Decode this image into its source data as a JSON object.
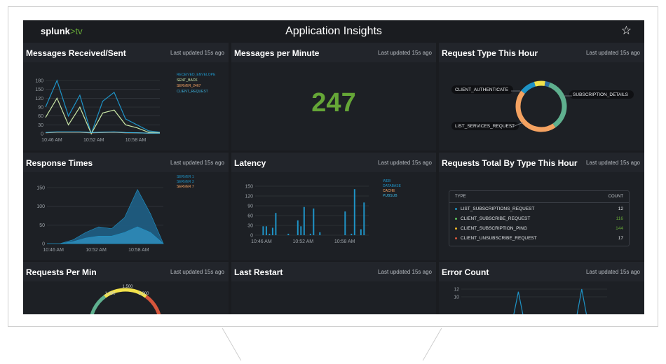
{
  "app": {
    "logo_main": "splunk",
    "logo_tv": ">tv",
    "title": "Application Insights",
    "star_icon": "☆"
  },
  "panels": {
    "messages_received_sent": {
      "title": "Messages Received/Sent",
      "updated": "Last updated 15s ago"
    },
    "messages_per_minute": {
      "title": "Messages per Minute",
      "updated": "Last updated 15s ago",
      "value": "247"
    },
    "request_type_hour": {
      "title": "Request Type This Hour",
      "updated": "Last updated 15s ago"
    },
    "response_times": {
      "title": "Response Times",
      "updated": "Last updated 15s ago"
    },
    "latency": {
      "title": "Latency",
      "updated": "Last updated 15s ago"
    },
    "requests_total": {
      "title": "Requests Total By Type This Hour",
      "updated": "Last updated 15s ago"
    },
    "requests_per_min": {
      "title": "Requests Per Min",
      "updated": "Last updated 15s ago"
    },
    "last_restart": {
      "title": "Last Restart",
      "updated": "Last updated 15s ago"
    },
    "error_count": {
      "title": "Error Count",
      "updated": "Last updated 15s ago"
    }
  },
  "requests_table": {
    "col_type": "TYPE",
    "col_count": "COUNT",
    "rows": [
      {
        "type": "LIST_SUBSCRIPTIONS_REQUEST",
        "count": "12",
        "color": "#1e93c6",
        "count_color": "#e1e4e7"
      },
      {
        "type": "CLIENT_SUBSCRIBE_REQUEST",
        "count": "116",
        "color": "#5cc05c",
        "count_color": "#65a637"
      },
      {
        "type": "CLIENT_SUBSCRIPTION_PING",
        "count": "144",
        "color": "#f2b827",
        "count_color": "#65a637"
      },
      {
        "type": "CLIENT_UNSUBSCRIBE_REQUEST",
        "count": "17",
        "color": "#d6563c",
        "count_color": "#e1e4e7"
      }
    ]
  },
  "chart_data": [
    {
      "type": "line",
      "x": [
        "10:46 AM",
        "",
        "",
        "",
        "10:52 AM",
        "",
        "",
        "",
        "10:58 AM",
        "",
        ""
      ],
      "ylim": [
        0,
        180
      ],
      "yticks": [
        "180",
        "150",
        "120",
        "90",
        "60",
        "30",
        "0"
      ],
      "xticks": [
        "10:46 AM",
        "10:52 AM",
        "10:58 AM"
      ],
      "series": [
        {
          "name": "RECEIVED_ENVELOPE",
          "color": "#1e93c6",
          "values": [
            90,
            180,
            60,
            130,
            0,
            110,
            140,
            50,
            30,
            10,
            5
          ]
        },
        {
          "name": "SENT_BACK",
          "color": "#c9e6a6",
          "values": [
            55,
            120,
            30,
            90,
            0,
            70,
            80,
            30,
            20,
            5,
            3
          ]
        },
        {
          "name": "SERVER_2467",
          "color": "#f7a463",
          "values": [
            3,
            5,
            5,
            5,
            3,
            4,
            5,
            3,
            3,
            2,
            2
          ]
        },
        {
          "name": "CLIENT_REQUEST",
          "color": "#3cb4e0",
          "values": [
            4,
            6,
            6,
            6,
            4,
            5,
            6,
            4,
            3,
            2,
            2
          ]
        }
      ]
    },
    {
      "type": "pie",
      "style": "donut",
      "slices": [
        {
          "label": "SUBSCRIPTION_DETAILS",
          "color": "#5fb08f",
          "value": 35
        },
        {
          "label": "LIST_SERVICES_REQUEST",
          "color": "#f4a261",
          "value": 45
        },
        {
          "label": "CLIENT_AUTHENTICATE",
          "color": "#1e93c6",
          "value": 10
        },
        {
          "label": "",
          "color": "#f2e24b",
          "value": 7
        },
        {
          "label": "",
          "color": "#2c6ea4",
          "value": 3
        }
      ]
    },
    {
      "type": "area",
      "ylim": [
        0,
        150
      ],
      "yticks": [
        "150",
        "100",
        "50",
        "0"
      ],
      "xticks": [
        "10:46 AM",
        "10:52 AM",
        "10:58 AM"
      ],
      "series": [
        {
          "name": "SERVER 1",
          "color": "#1e93c6",
          "values": [
            0,
            0,
            10,
            30,
            45,
            40,
            70,
            145,
            80,
            0
          ]
        },
        {
          "name": "SERVER 3",
          "color": "#1e93c6",
          "values": [
            0,
            0,
            5,
            15,
            20,
            20,
            30,
            45,
            30,
            0
          ]
        },
        {
          "name": "SERVER 7",
          "color": "#f7a463",
          "values": [
            0,
            0,
            0,
            0,
            0,
            0,
            0,
            0,
            0,
            0
          ]
        }
      ]
    },
    {
      "type": "bar",
      "ylim": [
        0,
        165
      ],
      "yticks": [
        "150",
        "120",
        "90",
        "60",
        "30",
        "0"
      ],
      "xticks": [
        "10:46 AM",
        "10:52 AM",
        "10:58 AM"
      ],
      "series": [
        {
          "name": "WEB",
          "color": "#1e93c6"
        },
        {
          "name": "DATABASE",
          "color": "#1e93c6"
        },
        {
          "name": "CACHE",
          "color": "#f7a463"
        },
        {
          "name": "PUBSUB",
          "color": "#3cb4e0"
        }
      ],
      "values": [
        0,
        0,
        30,
        30,
        5,
        25,
        75,
        0,
        0,
        0,
        5,
        0,
        0,
        50,
        30,
        95,
        0,
        5,
        90,
        0,
        10,
        0,
        0,
        0,
        0,
        0,
        0,
        0,
        80,
        0,
        5,
        155,
        0,
        20,
        110,
        0
      ]
    },
    {
      "type": "line",
      "ylim": [
        0,
        13
      ],
      "yticks": [
        "12",
        "10"
      ],
      "series": [
        {
          "name": "ERRORS",
          "color": "#1e93c6",
          "values": [
            0,
            0,
            0,
            0,
            0,
            0,
            0,
            0,
            0,
            12,
            0,
            0,
            0,
            0,
            0,
            0,
            0,
            0,
            0,
            13,
            0,
            0,
            0,
            0
          ]
        }
      ]
    }
  ],
  "gauge": {
    "labels": [
      "1,000",
      "1,500",
      "2,000"
    ]
  }
}
